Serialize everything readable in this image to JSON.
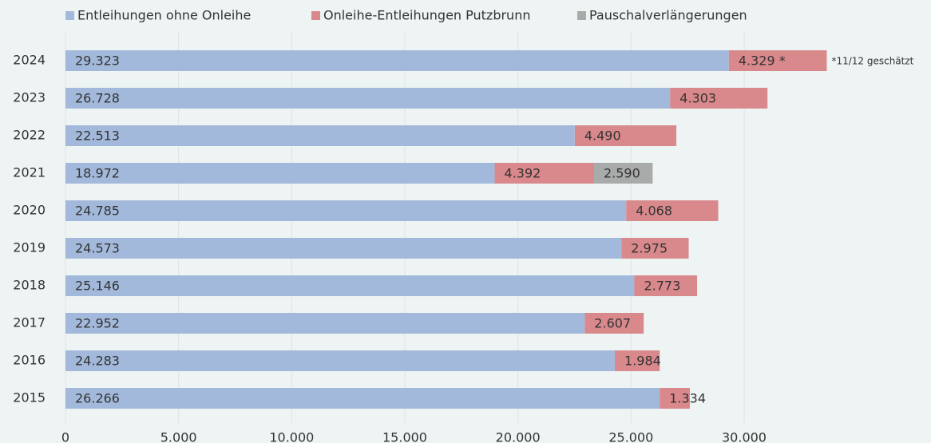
{
  "chart_data": {
    "type": "stacked-barh",
    "categories": [
      "2024",
      "2023",
      "2022",
      "2021",
      "2020",
      "2019",
      "2018",
      "2017",
      "2016",
      "2015"
    ],
    "series": [
      {
        "name": "Entleihungen ohne Onleihe",
        "color": "#a3b9db",
        "values": [
          29323,
          26728,
          22513,
          18972,
          24785,
          24573,
          25146,
          22952,
          24283,
          26266
        ],
        "value_labels": [
          "29.323",
          "26.728",
          "22.513",
          "18.972",
          "24.785",
          "24.573",
          "25.146",
          "22.952",
          "24.283",
          "26.266"
        ]
      },
      {
        "name": "Onleihe-Entleihungen Putzbrunn",
        "color": "#d9898c",
        "values": [
          4329,
          4303,
          4490,
          4392,
          4068,
          2975,
          2773,
          2607,
          1984,
          1334
        ],
        "value_labels": [
          "4.329 *",
          "4.303",
          "4.490",
          "4.392",
          "4.068",
          "2.975",
          "2.773",
          "2.607",
          "1.984",
          "1.334"
        ]
      },
      {
        "name": "Pauschalverlängerungen",
        "color": "#a9aaaa",
        "values": [
          null,
          null,
          null,
          2590,
          null,
          null,
          null,
          null,
          null,
          null
        ],
        "value_labels": [
          null,
          null,
          null,
          "2.590",
          null,
          null,
          null,
          null,
          null,
          null
        ]
      }
    ],
    "annotation": "*11/12 geschätzt",
    "xlim": [
      0,
      38000
    ],
    "xticks": [
      0,
      {
        "value": 5000,
        "label": "5.000"
      },
      {
        "value": 10000,
        "label": "10.000"
      },
      {
        "value": 15000,
        "label": "15.000"
      },
      {
        "value": 20000,
        "label": "20.000"
      },
      {
        "value": 25000,
        "label": "25.000"
      },
      {
        "value": 30000,
        "label": "30.000"
      }
    ],
    "grid": true
  }
}
